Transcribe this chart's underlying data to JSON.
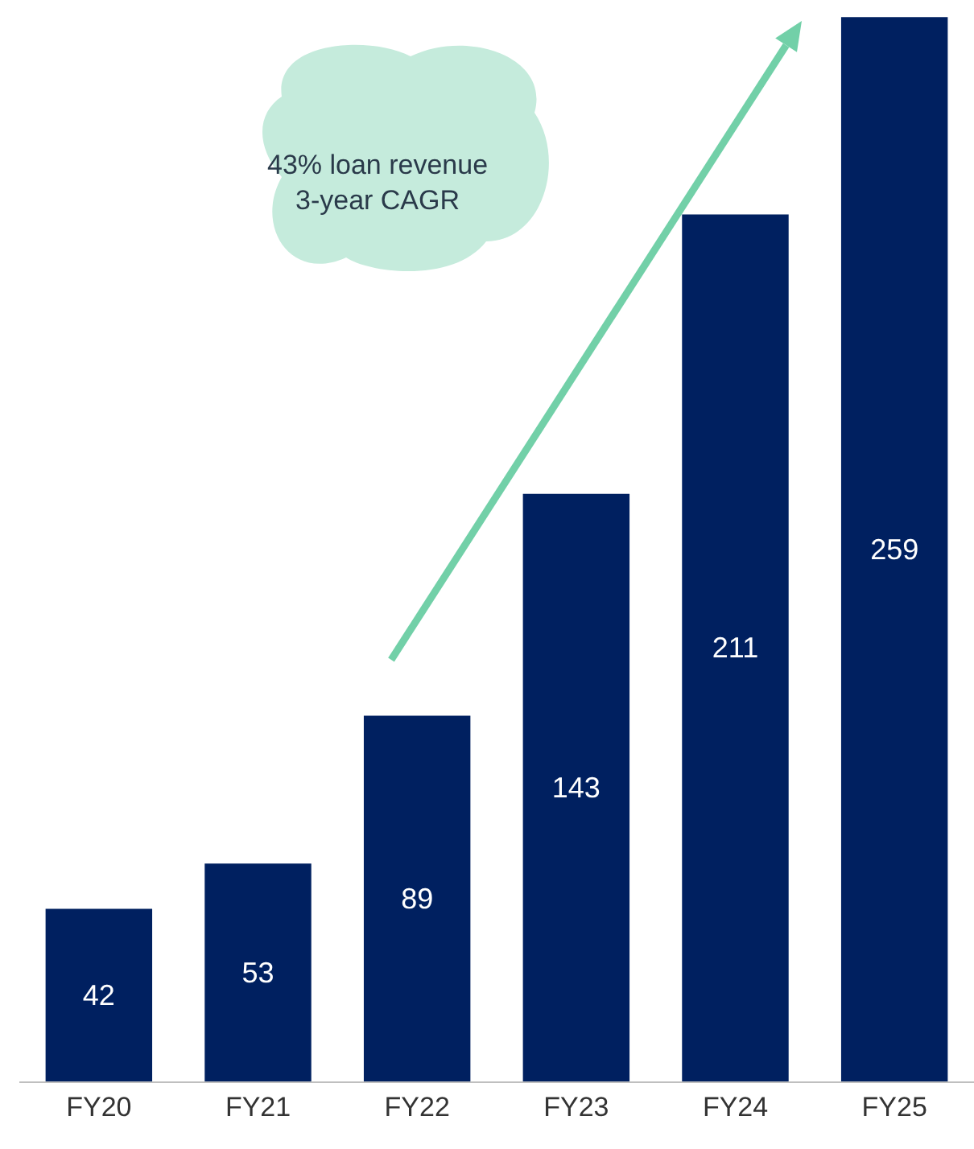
{
  "chart_data": {
    "type": "bar",
    "categories": [
      "FY20",
      "FY21",
      "FY22",
      "FY23",
      "FY24",
      "FY25"
    ],
    "values": [
      42,
      53,
      89,
      143,
      211,
      259
    ],
    "color": "#002060",
    "data_labels": true,
    "annotations": [
      "43% loan revenue\n3-year CAGR"
    ]
  }
}
